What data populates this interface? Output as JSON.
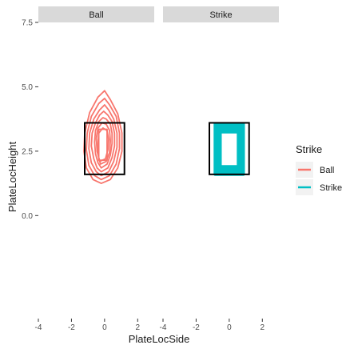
{
  "chart_data": {
    "type": "contour",
    "facet_var": "Strike",
    "facets": [
      {
        "label": "Ball",
        "color": "#F8766D",
        "contours": [
          [
            [
              -0.2,
              1.25
            ],
            [
              0.35,
              1.4
            ],
            [
              0.8,
              1.85
            ],
            [
              1.05,
              2.5
            ],
            [
              1.05,
              3.2
            ],
            [
              0.8,
              3.95
            ],
            [
              0.35,
              4.5
            ],
            [
              0.0,
              4.85
            ],
            [
              -0.4,
              4.6
            ],
            [
              -0.9,
              4.0
            ],
            [
              -1.2,
              3.2
            ],
            [
              -1.25,
              2.5
            ],
            [
              -1.1,
              1.85
            ],
            [
              -0.7,
              1.4
            ]
          ],
          [
            [
              -0.2,
              1.4
            ],
            [
              0.3,
              1.55
            ],
            [
              0.7,
              2.0
            ],
            [
              0.9,
              2.6
            ],
            [
              0.9,
              3.2
            ],
            [
              0.7,
              3.85
            ],
            [
              0.3,
              4.3
            ],
            [
              0.0,
              4.55
            ],
            [
              -0.35,
              4.35
            ],
            [
              -0.8,
              3.85
            ],
            [
              -1.05,
              3.2
            ],
            [
              -1.1,
              2.55
            ],
            [
              -0.95,
              1.95
            ],
            [
              -0.6,
              1.55
            ]
          ],
          [
            [
              -0.2,
              1.55
            ],
            [
              0.25,
              1.7
            ],
            [
              0.55,
              2.1
            ],
            [
              0.75,
              2.65
            ],
            [
              0.75,
              3.2
            ],
            [
              0.55,
              3.75
            ],
            [
              0.25,
              4.1
            ],
            [
              0.0,
              4.3
            ],
            [
              -0.3,
              4.1
            ],
            [
              -0.65,
              3.75
            ],
            [
              -0.9,
              3.2
            ],
            [
              -0.95,
              2.6
            ],
            [
              -0.8,
              2.05
            ],
            [
              -0.5,
              1.7
            ]
          ],
          [
            [
              -0.2,
              1.7
            ],
            [
              0.2,
              1.85
            ],
            [
              0.45,
              2.25
            ],
            [
              0.6,
              2.7
            ],
            [
              0.6,
              3.2
            ],
            [
              0.45,
              3.65
            ],
            [
              0.2,
              3.9
            ],
            [
              -0.05,
              4.05
            ],
            [
              -0.3,
              3.9
            ],
            [
              -0.55,
              3.6
            ],
            [
              -0.75,
              3.2
            ],
            [
              -0.8,
              2.7
            ],
            [
              -0.65,
              2.2
            ],
            [
              -0.45,
              1.85
            ]
          ],
          [
            [
              -0.2,
              1.85
            ],
            [
              0.15,
              2.0
            ],
            [
              0.35,
              2.35
            ],
            [
              0.45,
              2.8
            ],
            [
              0.45,
              3.2
            ],
            [
              0.35,
              3.55
            ],
            [
              0.1,
              3.75
            ],
            [
              -0.1,
              3.8
            ],
            [
              -0.35,
              3.65
            ],
            [
              -0.55,
              3.3
            ],
            [
              -0.6,
              2.85
            ],
            [
              -0.55,
              2.4
            ],
            [
              -0.4,
              2.05
            ]
          ],
          [
            [
              -0.25,
              2.0
            ],
            [
              0.1,
              2.1
            ],
            [
              0.3,
              2.45
            ],
            [
              0.35,
              2.9
            ],
            [
              0.3,
              3.3
            ],
            [
              0.1,
              3.55
            ],
            [
              -0.15,
              3.6
            ],
            [
              -0.4,
              3.4
            ],
            [
              -0.5,
              3.0
            ],
            [
              -0.45,
              2.5
            ]
          ],
          [
            [
              -0.3,
              2.1
            ],
            [
              0.05,
              2.2
            ],
            [
              0.2,
              2.55
            ],
            [
              0.25,
              2.95
            ],
            [
              0.15,
              3.3
            ],
            [
              -0.1,
              3.4
            ],
            [
              -0.35,
              3.2
            ],
            [
              -0.4,
              2.8
            ],
            [
              -0.4,
              2.4
            ]
          ],
          [
            [
              -0.35,
              2.15
            ],
            [
              0.15,
              2.15
            ],
            [
              0.15,
              3.35
            ],
            [
              -0.35,
              3.35
            ]
          ]
        ]
      },
      {
        "label": "Strike",
        "color": "#00BFC4",
        "contours": [
          [
            [
              -0.85,
              1.6
            ],
            [
              0.85,
              1.6
            ],
            [
              0.85,
              3.55
            ],
            [
              -0.85,
              3.55
            ]
          ],
          [
            [
              -0.75,
              1.7
            ],
            [
              0.75,
              1.7
            ],
            [
              0.75,
              3.45
            ],
            [
              -0.75,
              3.45
            ]
          ],
          [
            [
              -0.65,
              1.8
            ],
            [
              0.65,
              1.8
            ],
            [
              0.65,
              3.35
            ],
            [
              -0.65,
              3.35
            ]
          ],
          [
            [
              -0.55,
              1.9
            ],
            [
              0.55,
              1.9
            ],
            [
              0.55,
              3.25
            ],
            [
              -0.55,
              3.25
            ]
          ]
        ]
      }
    ],
    "strike_zone": {
      "x": [
        -1.2,
        1.2
      ],
      "y": [
        1.6,
        3.6
      ]
    },
    "x": {
      "label": "PlateLocSide",
      "range": [
        -4,
        3
      ],
      "ticks": [
        -4,
        -2,
        0,
        2
      ]
    },
    "y": {
      "label": "PlateLocHeight",
      "range": [
        -4.0,
        7.5
      ],
      "ticks": [
        0.0,
        2.5,
        5.0,
        7.5
      ],
      "tick_labels": [
        "0.0",
        "2.5",
        "5.0",
        "7.5"
      ]
    },
    "legend": {
      "title": "Strike",
      "position": "right",
      "entries": [
        {
          "label": "Ball",
          "color": "#F8766D"
        },
        {
          "label": "Strike",
          "color": "#00BFC4"
        }
      ]
    },
    "grid": false
  }
}
